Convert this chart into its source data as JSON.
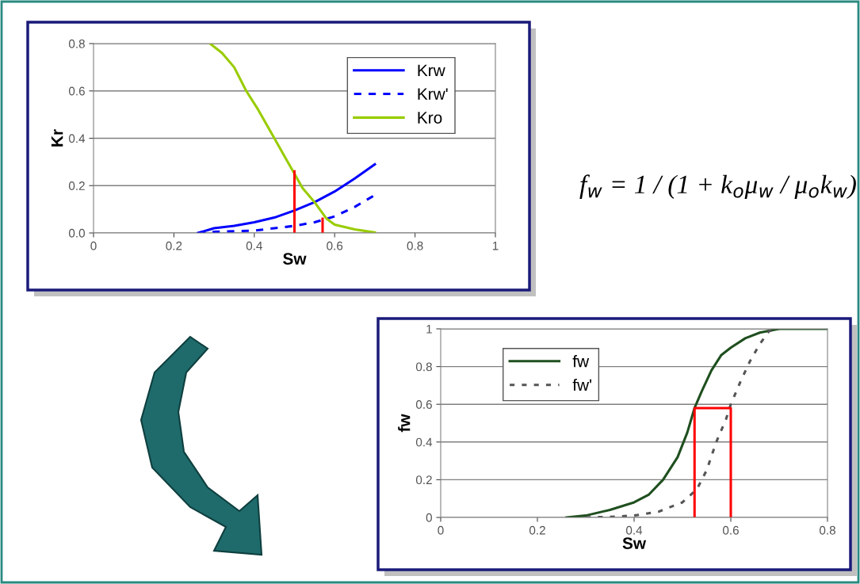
{
  "chart_data": [
    {
      "type": "line",
      "xlabel": "Sw",
      "ylabel": "Kr",
      "xlim": [
        0,
        1
      ],
      "ylim": [
        0,
        0.8
      ],
      "xticks": [
        0,
        0.2,
        0.4,
        0.6,
        0.8,
        1
      ],
      "yticks": [
        {
          "value": 0,
          "label": "0.0"
        },
        0.2,
        0.4,
        0.6,
        0.8
      ],
      "grid": "y",
      "legend": "top right",
      "marker": "none",
      "series": [
        {
          "name": "Krw",
          "color": "#0000ff",
          "line_style": "solid",
          "x": [
            0.26,
            0.3,
            0.35,
            0.4,
            0.45,
            0.5,
            0.55,
            0.6,
            0.65,
            0.7
          ],
          "values": [
            0,
            0.02,
            0.03,
            0.045,
            0.065,
            0.095,
            0.13,
            0.175,
            0.23,
            0.29
          ]
        },
        {
          "name": "Krw'",
          "color": "#0000ff",
          "line_style": "dashed",
          "x": [
            0.26,
            0.3,
            0.4,
            0.45,
            0.5,
            0.55,
            0.6,
            0.65,
            0.7
          ],
          "values": [
            0,
            0.005,
            0.01,
            0.02,
            0.03,
            0.045,
            0.07,
            0.11,
            0.16
          ]
        },
        {
          "name": "Kro",
          "color": "#99cc00",
          "line_style": "solid",
          "x": [
            0.29,
            0.32,
            0.35,
            0.38,
            0.41,
            0.45,
            0.48,
            0.5,
            0.52,
            0.55,
            0.58,
            0.6,
            0.65,
            0.7
          ],
          "values": [
            0.8,
            0.76,
            0.7,
            0.6,
            0.52,
            0.4,
            0.31,
            0.25,
            0.19,
            0.13,
            0.06,
            0.035,
            0.015,
            0.002
          ]
        },
        {
          "color": "#ff0000",
          "line_style": "solid",
          "x": [
            0.5,
            0.5
          ],
          "values": [
            0,
            0.26
          ]
        },
        {
          "color": "#ff0000",
          "line_style": "solid",
          "x": [
            0.57,
            0.57
          ],
          "values": [
            0,
            0.06
          ]
        }
      ],
      "annotations": [
        "f$_{w}$ = 1 / (1 + k$_{o}$μ$_{w}$ / μ$_{o}$k$_{w}$)"
      ]
    },
    {
      "type": "line",
      "xlabel": "Sw",
      "ylabel": "fw",
      "xlim": [
        0,
        0.8
      ],
      "ylim": [
        0,
        1
      ],
      "xticks": [
        0,
        0.2,
        0.4,
        0.6,
        0.8
      ],
      "yticks": [
        0,
        0.2,
        0.4,
        0.6,
        0.8,
        1
      ],
      "grid": "y",
      "legend": "top left",
      "marker": "none",
      "series": [
        {
          "name": "fw",
          "color": "#1f4f1f",
          "line_style": "solid",
          "x": [
            0.26,
            0.3,
            0.35,
            0.4,
            0.43,
            0.46,
            0.49,
            0.51,
            0.525,
            0.54,
            0.56,
            0.58,
            0.6,
            0.63,
            0.66,
            0.7,
            0.8
          ],
          "values": [
            0,
            0.01,
            0.04,
            0.08,
            0.12,
            0.2,
            0.32,
            0.45,
            0.58,
            0.67,
            0.78,
            0.86,
            0.9,
            0.95,
            0.98,
            1,
            1
          ]
        },
        {
          "name": "fw'",
          "color": "#555555",
          "line_style": "dotted",
          "x": [
            0.3,
            0.35,
            0.4,
            0.45,
            0.5,
            0.53,
            0.55,
            0.57,
            0.59,
            0.6,
            0.62,
            0.64,
            0.66,
            0.68,
            0.7
          ],
          "values": [
            0,
            0.003,
            0.01,
            0.03,
            0.08,
            0.15,
            0.25,
            0.4,
            0.52,
            0.6,
            0.72,
            0.83,
            0.92,
            0.99,
            1
          ]
        },
        {
          "color": "#ff0000",
          "line_style": "solid",
          "x": [
            0.525,
            0.525,
            0.6,
            0.6
          ],
          "values": [
            0,
            0.58,
            0.58,
            0
          ]
        }
      ]
    }
  ]
}
